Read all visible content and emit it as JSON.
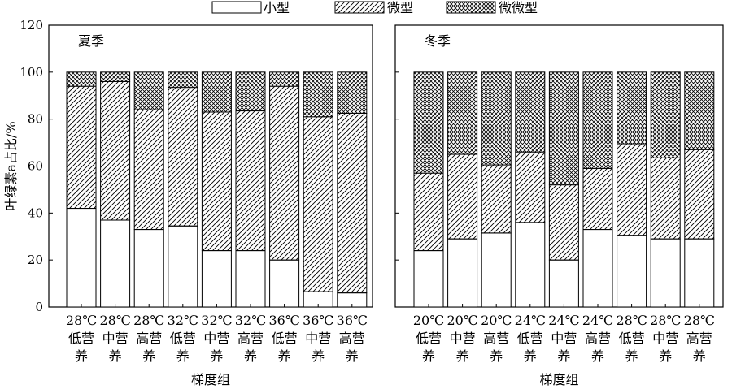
{
  "chart_data": {
    "type": "bar",
    "stacked": true,
    "ylabel": "叶绿素a占比/%",
    "ylim": [
      0,
      120
    ],
    "yticks": [
      0,
      20,
      40,
      60,
      80,
      100,
      120
    ],
    "grid": false,
    "legend": {
      "placement": "top-center",
      "entries": [
        {
          "name": "小型",
          "fill": "white"
        },
        {
          "name": "微型",
          "fill": "hatch-diagonal"
        },
        {
          "name": "微微型",
          "fill": "hatch-cross"
        }
      ]
    },
    "panels": [
      {
        "title": "夏季",
        "xlabel": "梯度组",
        "categories": [
          [
            "28℃",
            "低营",
            "养"
          ],
          [
            "28℃",
            "中营",
            "养"
          ],
          [
            "28℃",
            "高营",
            "养"
          ],
          [
            "32℃",
            "低营",
            "养"
          ],
          [
            "32℃",
            "中营",
            "养"
          ],
          [
            "32℃",
            "高营",
            "养"
          ],
          [
            "36℃",
            "低营",
            "养"
          ],
          [
            "36℃",
            "中营",
            "养"
          ],
          [
            "36℃",
            "高营",
            "养"
          ]
        ],
        "series": [
          {
            "name": "小型",
            "values": [
              42,
              37,
              33,
              34.5,
              24,
              24,
              20,
              6.5,
              6
            ]
          },
          {
            "name": "微型",
            "values": [
              52,
              59,
              51,
              59,
              59,
              59.5,
              74,
              74.5,
              76.5
            ]
          },
          {
            "name": "微微型",
            "values": [
              6,
              4,
              16,
              6.5,
              17,
              16.5,
              6,
              19,
              17.5
            ]
          }
        ]
      },
      {
        "title": "冬季",
        "xlabel": "梯度组",
        "categories": [
          [
            "20℃",
            "低营",
            "养"
          ],
          [
            "20℃",
            "中营",
            "养"
          ],
          [
            "20℃",
            "高营",
            "养"
          ],
          [
            "24℃",
            "低营",
            "养"
          ],
          [
            "24℃",
            "中营",
            "养"
          ],
          [
            "24℃",
            "高营",
            "养"
          ],
          [
            "28℃",
            "低营",
            "养"
          ],
          [
            "28℃",
            "中营",
            "养"
          ],
          [
            "28℃",
            "高营",
            "养"
          ]
        ],
        "series": [
          {
            "name": "小型",
            "values": [
              24,
              29,
              31.5,
              36,
              20,
              33,
              30.5,
              29,
              29
            ]
          },
          {
            "name": "微型",
            "values": [
              33,
              36,
              29,
              30,
              32,
              26,
              39,
              34.5,
              38
            ]
          },
          {
            "name": "微微型",
            "values": [
              43,
              35,
              39.5,
              34,
              48,
              41,
              30.5,
              36.5,
              33
            ]
          }
        ]
      }
    ]
  }
}
